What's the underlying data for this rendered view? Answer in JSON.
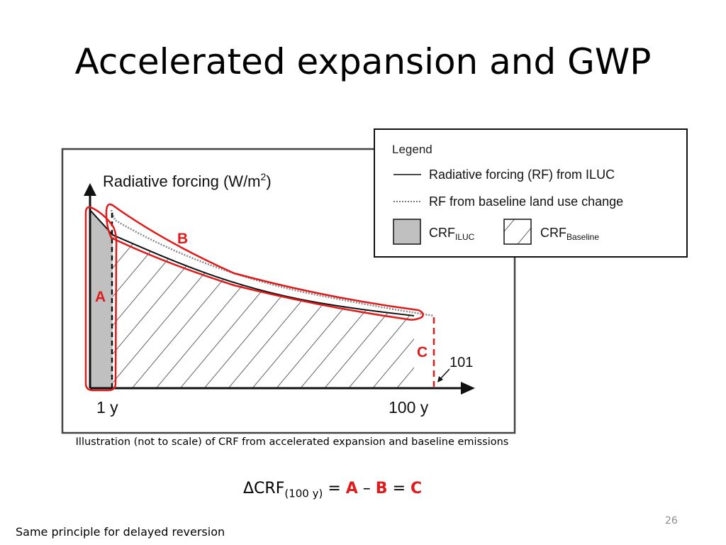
{
  "slide": {
    "title": "Accelerated expansion and GWP",
    "caption": "Illustration (not to scale) of CRF from accelerated expansion and baseline emissions",
    "formula": {
      "delta": "ΔCRF",
      "subscript": "(100 y)",
      "eq1": " = ",
      "a": "A",
      "minus": " – ",
      "b": "B",
      "eq2": " = ",
      "c": "C"
    },
    "page_number": "26",
    "footer_note": "Same principle for delayed reversion"
  },
  "diagram": {
    "y_axis_label": "Radiative forcing (W/m",
    "y_axis_label_sup": "2",
    "y_axis_label_end": ")",
    "x_tick_start": "1 y",
    "x_tick_end": "100 y",
    "label_a": "A",
    "label_b": "B",
    "label_c": "C",
    "label_101": "101",
    "legend": {
      "title": "Legend",
      "item_rf_iluc": "Radiative forcing (RF) from ILUC",
      "item_rf_baseline": "RF from baseline land use change",
      "crf_iluc": "CRF",
      "crf_iluc_sub": "ILUC",
      "crf_baseline": "CRF",
      "crf_baseline_sub": "Baseline"
    },
    "colors": {
      "highlight_red": "#e01b1b",
      "crf_iluc_fill": "#c0c0c0"
    }
  }
}
